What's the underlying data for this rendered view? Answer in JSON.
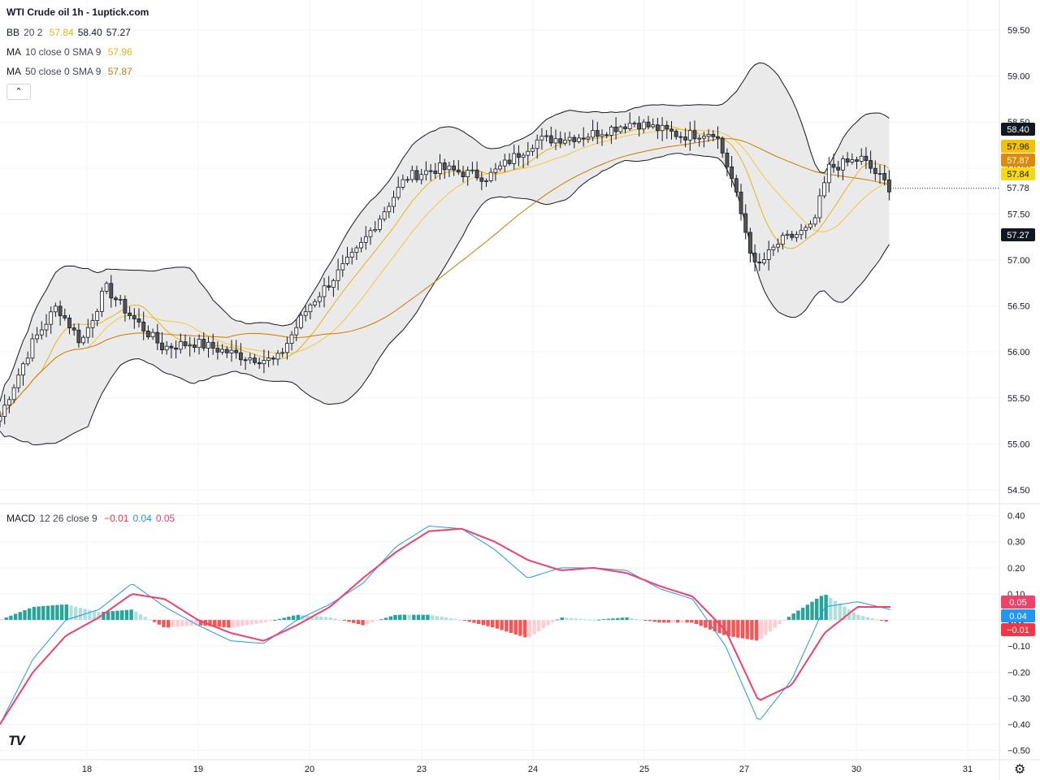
{
  "title": "WTI Crude oil  1h - 1uptick.com",
  "legend": {
    "bb": {
      "name": "BB",
      "params": "20 2",
      "v1": "57.84",
      "v2": "58.40",
      "v3": "57.27",
      "c1": "#e5b416",
      "c2": "#131722",
      "c3": "#131722"
    },
    "ma10": {
      "name": "MA",
      "params": "10 close 0 SMA 9",
      "value": "57.96",
      "color": "#e5b416"
    },
    "ma50": {
      "name": "MA",
      "params": "50 close 0 SMA 9",
      "value": "57.87",
      "color": "#cc7a00"
    },
    "macd": {
      "name": "MACD",
      "params": "12 26 close 9",
      "v1": "−0.01",
      "v2": "0.04",
      "v3": "0.05",
      "c1": "#f23645",
      "c2": "#2196f3",
      "c3": "#f0416c"
    }
  },
  "collapse_icon": "chevron-up-icon",
  "logo_text": "TV",
  "settings_icon": "gear-icon",
  "price_axis": {
    "ticks": [
      "59.50",
      "59.00",
      "58.50",
      "58.00",
      "57.50",
      "57.00",
      "56.50",
      "56.00",
      "55.50",
      "55.00",
      "54.50"
    ]
  },
  "price_labels": [
    {
      "text": "58.40",
      "bg": "#131722",
      "fg": "#ffffff",
      "value": 58.4
    },
    {
      "text": "57.96",
      "bg": "#f2c10c",
      "fg": "#131722",
      "value": 57.96
    },
    {
      "text": "57.87",
      "bg": "#e08a0a",
      "fg": "#ffffff",
      "value": 57.87
    },
    {
      "text": "57.84",
      "bg": "#f5d916",
      "fg": "#131722",
      "value": 57.84
    },
    {
      "text": "57.78",
      "bg": "#ffffff",
      "fg": "#131722",
      "value": 57.78
    },
    {
      "text": "57.27",
      "bg": "#131722",
      "fg": "#ffffff",
      "value": 57.27
    }
  ],
  "macd_axis": {
    "ticks": [
      "0.40",
      "0.30",
      "0.20",
      "0.10",
      "0.00",
      "−0.10",
      "−0.20",
      "−0.30",
      "−0.40",
      "−0.50"
    ]
  },
  "macd_labels": [
    {
      "text": "0.05",
      "bg": "#f0416c",
      "fg": "#ffffff",
      "value": 0.05
    },
    {
      "text": "0.04",
      "bg": "#2196f3",
      "fg": "#ffffff",
      "value": 0.04
    },
    {
      "text": "−0.01",
      "bg": "#f23645",
      "fg": "#ffffff",
      "value": -0.01
    }
  ],
  "time_axis": {
    "ticks": [
      "18",
      "19",
      "20",
      "23",
      "24",
      "25",
      "27",
      "30",
      "31"
    ]
  },
  "chart_data": [
    {
      "type": "candlestick",
      "title": "WTI Crude oil  1h - 1uptick.com",
      "ylim": [
        54.42,
        59.58
      ],
      "x": [
        "18",
        "19",
        "20",
        "23",
        "24",
        "25",
        "27",
        "30",
        "31"
      ],
      "bb_upper": [
        56.9,
        56.6,
        56.4,
        56.9,
        57.0,
        57.1,
        57.2,
        57.0,
        56.8,
        56.7,
        57.3,
        58.3,
        58.0,
        58.4,
        58.65,
        58.7,
        58.85,
        58.5,
        58.3,
        58.1,
        59.2,
        58.7,
        58.35
      ],
      "bb_lower": [
        54.9,
        55.1,
        55.5,
        55.6,
        55.8,
        55.7,
        55.6,
        55.5,
        55.8,
        56.2,
        57.1,
        57.7,
        57.8,
        58.2,
        58.25,
        58.0,
        58.4,
        57.9,
        56.4,
        56.7,
        56.5,
        57.0,
        57.27
      ],
      "close_last": 57.78,
      "ma10_last": 57.96,
      "ma50_last": 57.87,
      "bb_last": {
        "basis": 57.84,
        "upper": 58.4,
        "lower": 57.27
      }
    },
    {
      "type": "line",
      "title": "MACD 12 26 close 9",
      "ylim": [
        -0.52,
        0.43
      ],
      "macd_last": 0.04,
      "signal_last": 0.05,
      "histogram_last": -0.01,
      "macd": [
        -0.4,
        -0.15,
        0.0,
        0.04,
        0.14,
        0.05,
        -0.02,
        -0.08,
        -0.09,
        0.0,
        0.06,
        0.14,
        0.28,
        0.36,
        0.35,
        0.27,
        0.16,
        0.2,
        0.2,
        0.19,
        0.12,
        0.08,
        -0.1,
        -0.39,
        -0.23,
        0.05,
        0.07,
        0.04
      ],
      "signal": [
        -0.4,
        -0.2,
        -0.06,
        0.01,
        0.1,
        0.08,
        0.0,
        -0.05,
        -0.08,
        -0.02,
        0.05,
        0.16,
        0.26,
        0.34,
        0.35,
        0.3,
        0.23,
        0.19,
        0.2,
        0.18,
        0.13,
        0.09,
        -0.04,
        -0.31,
        -0.25,
        -0.05,
        0.05,
        0.05
      ]
    }
  ]
}
